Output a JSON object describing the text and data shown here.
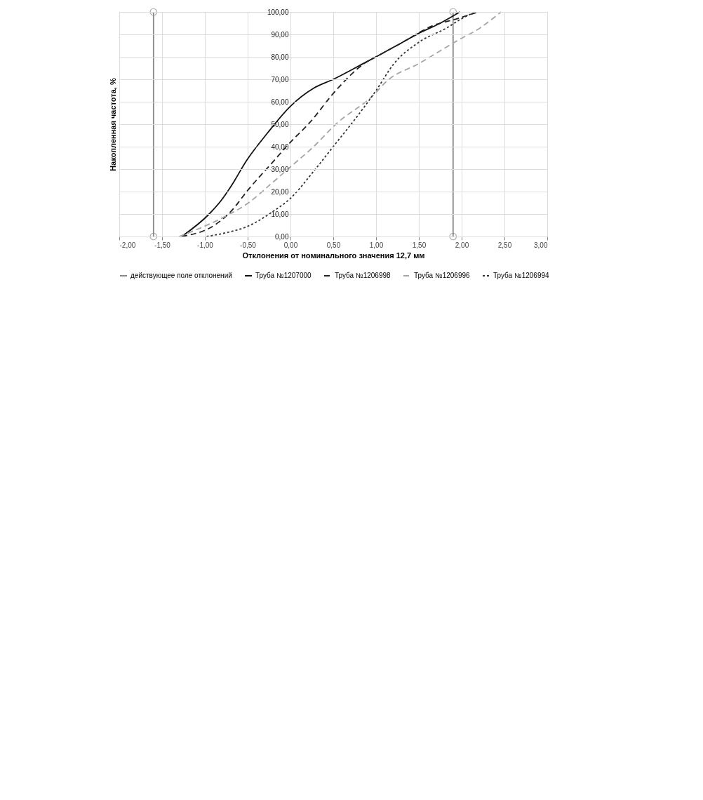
{
  "chart_data": {
    "type": "line",
    "xlabel": "Отклонения от номинального значения 12,7 мм",
    "ylabel": "Накопленная частота, %",
    "xlim": [
      -2,
      3
    ],
    "xticks": [
      {
        "value": -2,
        "label": "-2,00"
      },
      {
        "value": -1.5,
        "label": "-1,50"
      },
      {
        "value": -1,
        "label": "-1,00"
      },
      {
        "value": -0.5,
        "label": "-0,50"
      },
      {
        "value": 0,
        "label": "0,00"
      },
      {
        "value": 0.5,
        "label": "0,50"
      },
      {
        "value": 1,
        "label": "1,00"
      },
      {
        "value": 1.5,
        "label": "1,50"
      },
      {
        "value": 2,
        "label": "2,00"
      },
      {
        "value": 2.5,
        "label": "2,50"
      },
      {
        "value": 3,
        "label": "3,00"
      }
    ],
    "ylim": [
      0,
      100
    ],
    "yticks": [
      {
        "value": 0,
        "label": "0,00"
      },
      {
        "value": 10,
        "label": "10,00"
      },
      {
        "value": 20,
        "label": "20,00"
      },
      {
        "value": 30,
        "label": "30,00"
      },
      {
        "value": 40,
        "label": "40,00"
      },
      {
        "value": 50,
        "label": "50,00"
      },
      {
        "value": 60,
        "label": "60,00"
      },
      {
        "value": 70,
        "label": "70,00"
      },
      {
        "value": 80,
        "label": "80,00"
      },
      {
        "value": 90,
        "label": "90,00"
      },
      {
        "value": 100,
        "label": "100,00"
      }
    ],
    "grid": true,
    "legend": "bottom",
    "marker": "none",
    "series": [
      {
        "name": "действующее поле отклонений",
        "color": "#888888",
        "line_style": "solid",
        "marker": "circle",
        "x": [
          -1.6,
          -1.6,
          null,
          1.9,
          1.9
        ],
        "values": [
          0,
          100,
          null,
          100,
          0
        ]
      },
      {
        "name": "Труба №1207000",
        "color": "#111111",
        "line_style": "solid",
        "x": [
          -1.27,
          -0.95,
          -0.81,
          -0.7,
          -0.51,
          -0.27,
          0,
          0.27,
          0.5,
          0.85,
          1,
          1.31,
          1.5,
          1.75,
          1.98
        ],
        "values": [
          0,
          10,
          16,
          22,
          34,
          46,
          58,
          66,
          70,
          77,
          80,
          86.5,
          90.5,
          95,
          100
        ]
      },
      {
        "name": "Труба №1206998",
        "color": "#222222",
        "line_style": "dashed",
        "x": [
          -1.27,
          -0.87,
          -0.7,
          -0.49,
          -0.21,
          0,
          0.22,
          0.53,
          0.88,
          1,
          1.31,
          1.67,
          1.95,
          2.19
        ],
        "values": [
          0,
          5.5,
          11,
          21,
          33,
          42,
          50.5,
          65,
          77.5,
          80,
          86.5,
          94,
          97,
          100
        ]
      },
      {
        "name": "Труба №1206996",
        "color": "#a6a6a6",
        "line_style": "dashed",
        "x": [
          -1.3,
          -0.76,
          -0.49,
          -0.24,
          0,
          0.27,
          0.53,
          0.97,
          1.12,
          1.5,
          1.94,
          2.22,
          2.46
        ],
        "values": [
          0,
          9,
          15,
          23,
          31,
          40,
          50,
          63,
          69,
          77,
          87,
          93,
          100
        ]
      },
      {
        "name": "Труба №1206994",
        "color": "#333333",
        "line_style": "dotted",
        "x": [
          -0.98,
          -0.76,
          -0.49,
          -0.21,
          0,
          0.27,
          0.52,
          0.79,
          1,
          1.21,
          1.5,
          1.83,
          2,
          2.16
        ],
        "values": [
          0,
          1.6,
          4.7,
          11,
          17,
          29,
          41,
          54,
          65,
          77,
          86.5,
          93,
          97,
          100
        ]
      }
    ]
  }
}
